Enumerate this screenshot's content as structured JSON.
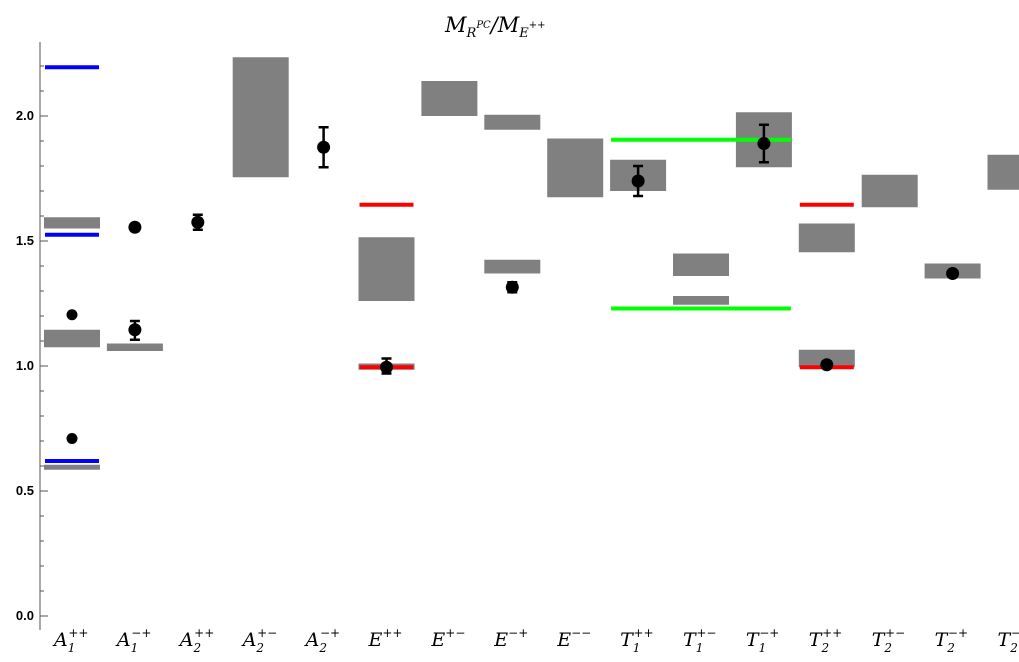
{
  "chart_data": {
    "type": "scatter",
    "title": {
      "main1": "M",
      "sub1": "R",
      "subsup1": "PC",
      "slash": "/",
      "main2": "M",
      "sub2": "E",
      "subsup2": "++"
    },
    "ylim": [
      -0.05,
      2.25
    ],
    "yticks_major": [
      {
        "value": 0.0,
        "label": "0.0"
      },
      {
        "value": 0.5,
        "label": "0.5"
      },
      {
        "value": 1.0,
        "label": "1.0"
      },
      {
        "value": 1.5,
        "label": "1.5"
      },
      {
        "value": 2.0,
        "label": "2.0"
      }
    ],
    "yticks_minor": [
      0.1,
      0.2,
      0.3,
      0.4,
      0.6,
      0.7,
      0.8,
      0.9,
      1.1,
      1.2,
      1.3,
      1.4,
      1.6,
      1.7,
      1.8,
      1.9,
      2.1,
      2.2
    ],
    "categories": [
      {
        "base": "A",
        "sub": "1",
        "sup": "++"
      },
      {
        "base": "A",
        "sub": "1",
        "sup": "−+"
      },
      {
        "base": "A",
        "sub": "2",
        "sup": "++"
      },
      {
        "base": "A",
        "sub": "2",
        "sup": "+−"
      },
      {
        "base": "A",
        "sub": "2",
        "sup": "−+"
      },
      {
        "base": "E",
        "sub": "",
        "sup": "++"
      },
      {
        "base": "E",
        "sub": "",
        "sup": "+−"
      },
      {
        "base": "E",
        "sub": "",
        "sup": "−+"
      },
      {
        "base": "E",
        "sub": "",
        "sup": "−−"
      },
      {
        "base": "T",
        "sub": "1",
        "sup": "++"
      },
      {
        "base": "T",
        "sub": "1",
        "sup": "+−"
      },
      {
        "base": "T",
        "sub": "1",
        "sup": "−+"
      },
      {
        "base": "T",
        "sub": "2",
        "sup": "++"
      },
      {
        "base": "T",
        "sub": "2",
        "sup": "+−"
      },
      {
        "base": "T",
        "sub": "2",
        "sup": "−+"
      },
      {
        "base": "T",
        "sub": "2",
        "sup": "−−"
      }
    ],
    "bands_color": "#808080",
    "bands": [
      {
        "cat": 0,
        "low": 0.585,
        "high": 0.605
      },
      {
        "cat": 0,
        "low": 1.075,
        "high": 1.145
      },
      {
        "cat": 0,
        "low": 1.55,
        "high": 1.595
      },
      {
        "cat": 1,
        "low": 1.06,
        "high": 1.09
      },
      {
        "cat": 3,
        "low": 1.755,
        "high": 2.235
      },
      {
        "cat": 5,
        "low": 0.985,
        "high": 1.01
      },
      {
        "cat": 5,
        "low": 1.26,
        "high": 1.515
      },
      {
        "cat": 6,
        "low": 2.0,
        "high": 2.14
      },
      {
        "cat": 7,
        "low": 1.37,
        "high": 1.425
      },
      {
        "cat": 7,
        "low": 1.945,
        "high": 2.005
      },
      {
        "cat": 8,
        "low": 1.675,
        "high": 1.91
      },
      {
        "cat": 9,
        "low": 1.7,
        "high": 1.825
      },
      {
        "cat": 10,
        "low": 1.245,
        "high": 1.28
      },
      {
        "cat": 10,
        "low": 1.36,
        "high": 1.45
      },
      {
        "cat": 11,
        "low": 1.795,
        "high": 2.015
      },
      {
        "cat": 12,
        "low": 0.995,
        "high": 1.065
      },
      {
        "cat": 12,
        "low": 1.455,
        "high": 1.57
      },
      {
        "cat": 13,
        "low": 1.635,
        "high": 1.765
      },
      {
        "cat": 14,
        "low": 1.35,
        "high": 1.41
      },
      {
        "cat": 15,
        "low": 1.705,
        "high": 1.845
      }
    ],
    "lines": [
      {
        "color": "#0000ff",
        "y": 0.62,
        "cat_from": 0,
        "cat_to": 0
      },
      {
        "color": "#0000ff",
        "y": 1.525,
        "cat_from": 0,
        "cat_to": 0
      },
      {
        "color": "#0000ff",
        "y": 2.195,
        "cat_from": 0,
        "cat_to": 0
      },
      {
        "color": "#ff0000",
        "y": 0.995,
        "cat_from": 5,
        "cat_to": 5
      },
      {
        "color": "#ff0000",
        "y": 1.645,
        "cat_from": 5,
        "cat_to": 5
      },
      {
        "color": "#00ff00",
        "y": 1.23,
        "cat_from": 9,
        "cat_to": 11
      },
      {
        "color": "#00ff00",
        "y": 1.905,
        "cat_from": 9,
        "cat_to": 11
      },
      {
        "color": "#ff0000",
        "y": 0.995,
        "cat_from": 12,
        "cat_to": 12
      },
      {
        "color": "#ff0000",
        "y": 1.645,
        "cat_from": 12,
        "cat_to": 12
      }
    ],
    "points": [
      {
        "cat": 0,
        "y": 0.71,
        "err_low": 0.71,
        "err_high": 0.71,
        "size": "small"
      },
      {
        "cat": 0,
        "y": 1.205,
        "err_low": 1.205,
        "err_high": 1.205,
        "size": "small"
      },
      {
        "cat": 1,
        "y": 1.145,
        "err_low": 1.105,
        "err_high": 1.18,
        "size": "large"
      },
      {
        "cat": 1,
        "y": 1.555,
        "err_low": 1.555,
        "err_high": 1.555,
        "size": "large"
      },
      {
        "cat": 2,
        "y": 1.575,
        "err_low": 1.545,
        "err_high": 1.605,
        "size": "large"
      },
      {
        "cat": 4,
        "y": 1.875,
        "err_low": 1.795,
        "err_high": 1.955,
        "size": "large"
      },
      {
        "cat": 5,
        "y": 0.995,
        "err_low": 0.97,
        "err_high": 1.03,
        "size": "large"
      },
      {
        "cat": 7,
        "y": 1.315,
        "err_low": 1.295,
        "err_high": 1.335,
        "size": "large"
      },
      {
        "cat": 9,
        "y": 1.74,
        "err_low": 1.68,
        "err_high": 1.8,
        "size": "large"
      },
      {
        "cat": 11,
        "y": 1.89,
        "err_low": 1.815,
        "err_high": 1.965,
        "size": "large"
      },
      {
        "cat": 12,
        "y": 1.005,
        "err_low": 0.995,
        "err_high": 1.015,
        "size": "large"
      },
      {
        "cat": 14,
        "y": 1.37,
        "err_low": 1.36,
        "err_high": 1.38,
        "size": "large"
      }
    ]
  }
}
